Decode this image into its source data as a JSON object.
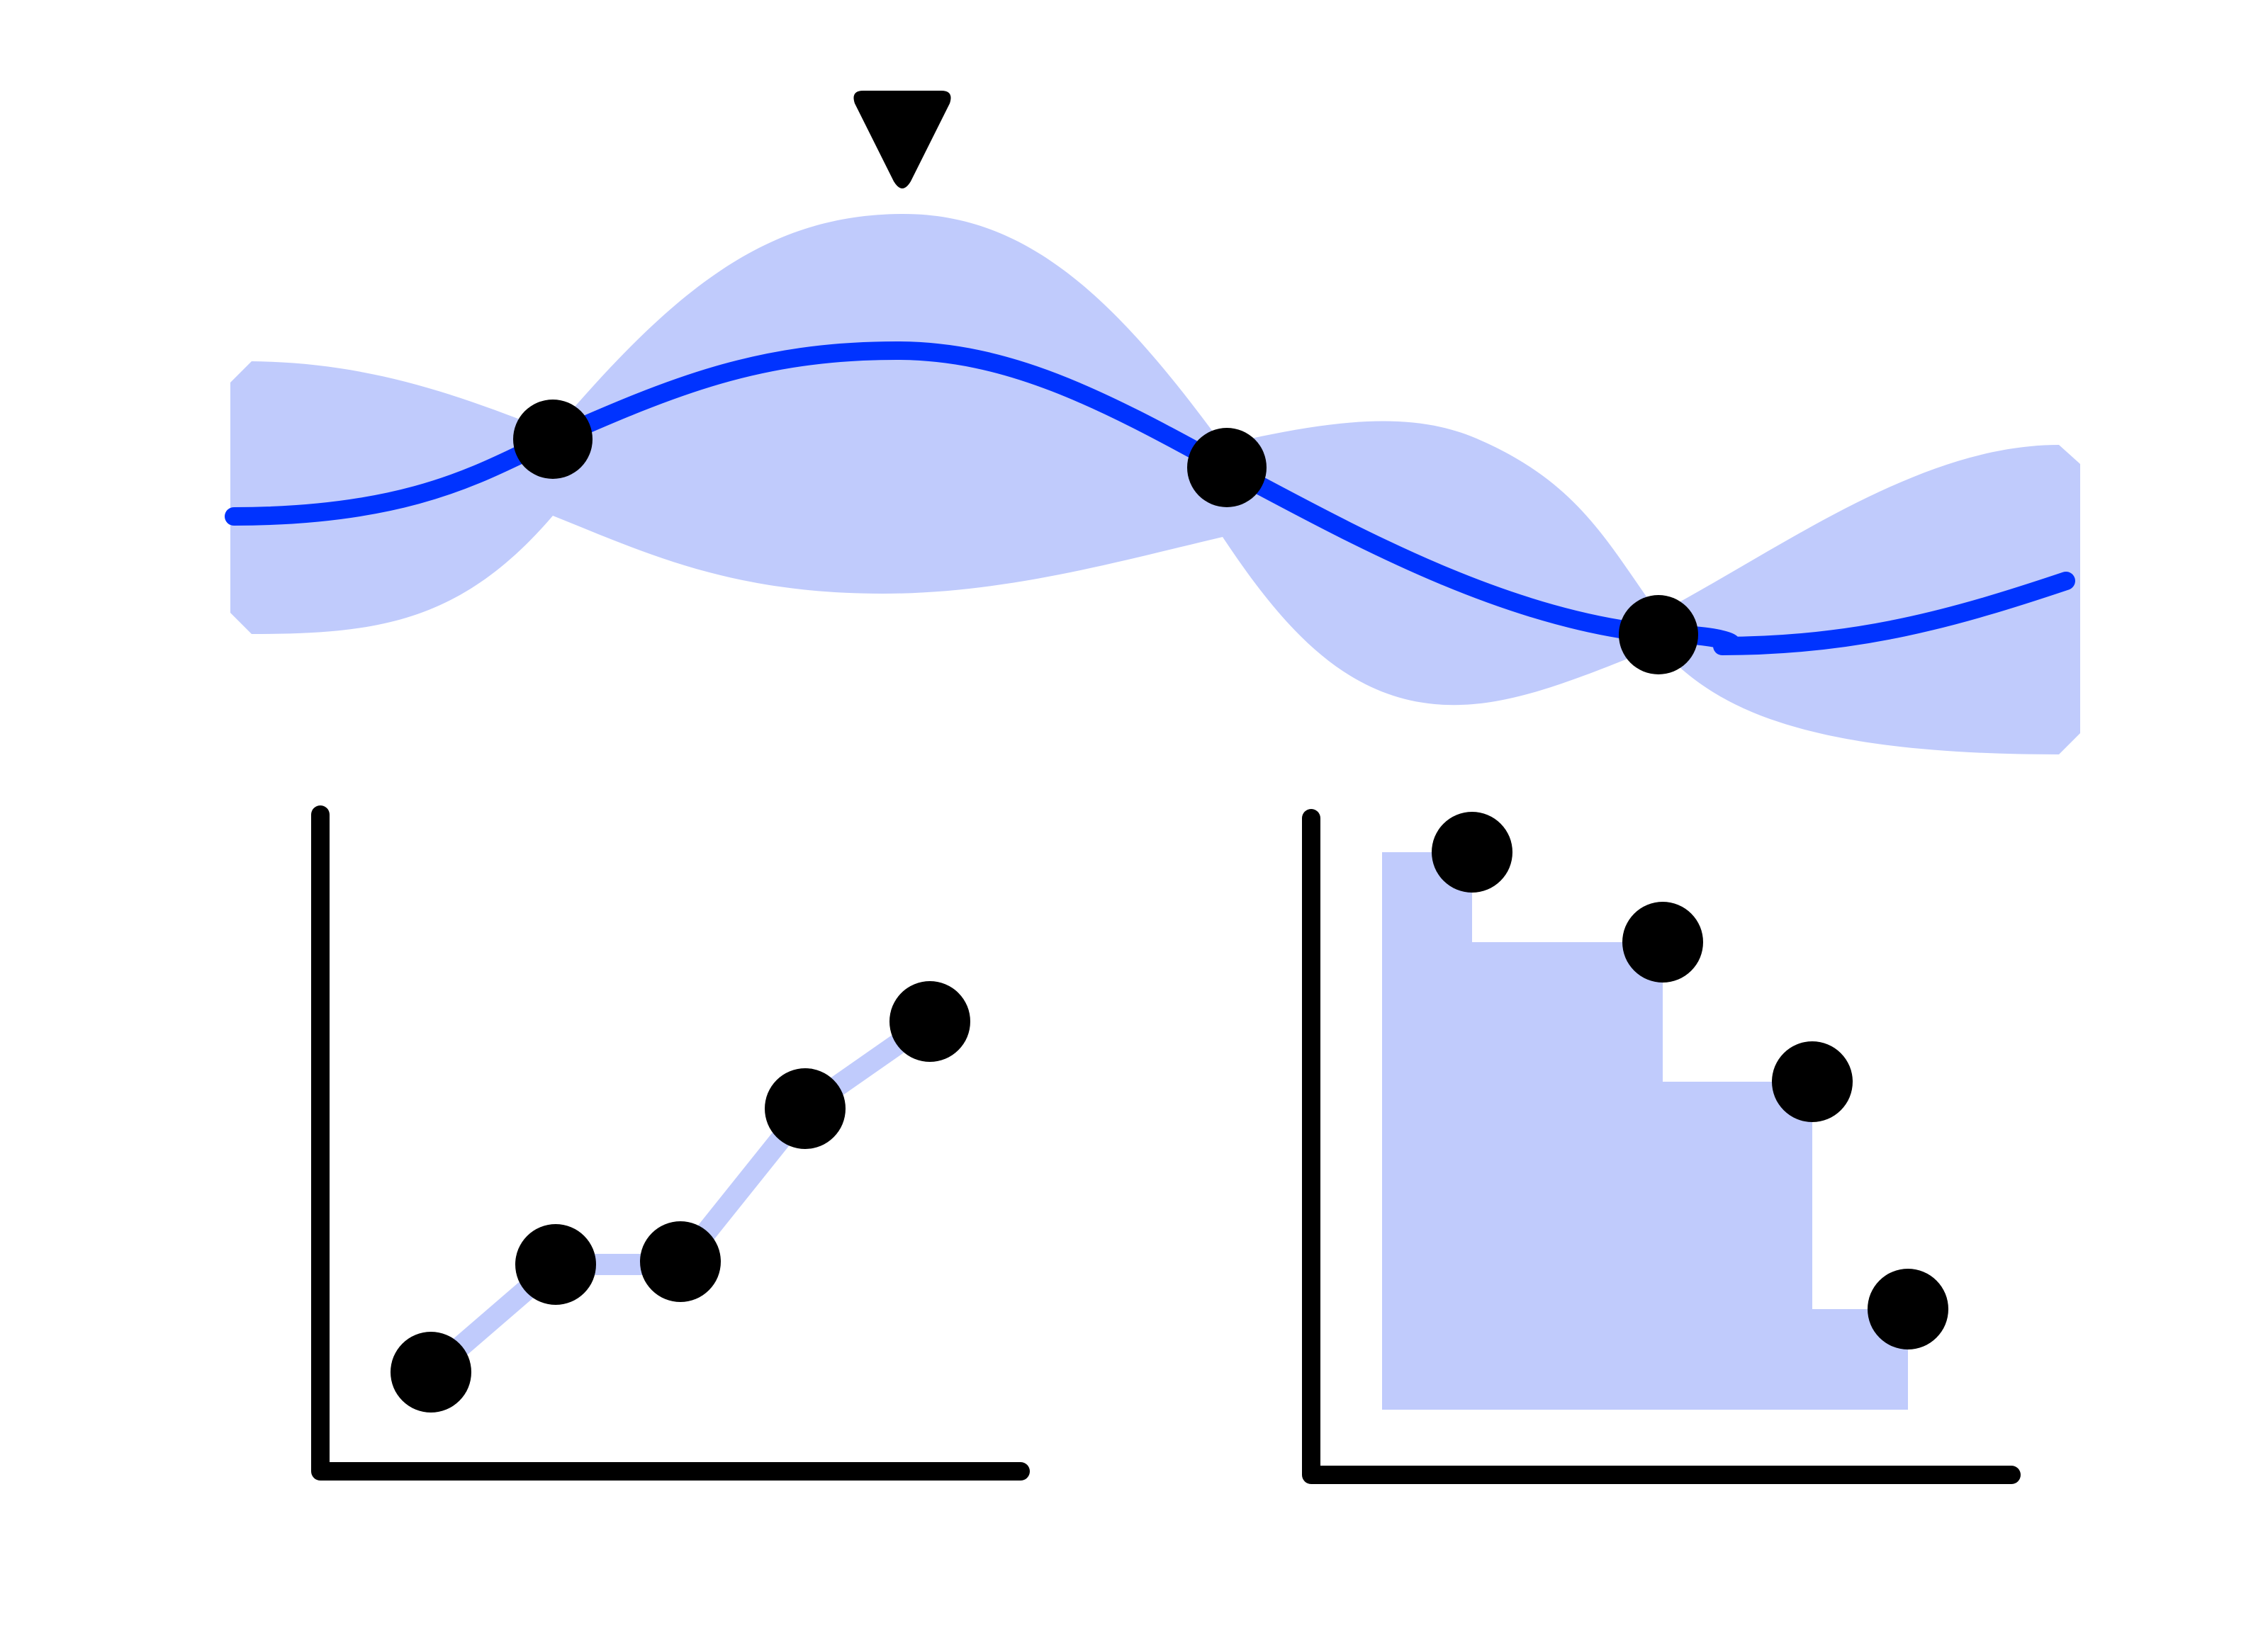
{
  "colors": {
    "background": "#ffffff",
    "primary_line": "#0033ff",
    "band_fill": "#c0cbfc",
    "points": "#000000",
    "axes": "#000000"
  },
  "icons": {
    "marker": "down-triangle-icon"
  },
  "chart_data": [
    {
      "type": "line",
      "role": "gaussian-process-surrogate",
      "series": [
        {
          "kind": "mean",
          "x": [
            0.0,
            0.17,
            0.36,
            0.53,
            0.77,
            0.81,
            1.0
          ],
          "y": [
            0.5,
            0.63,
            0.82,
            0.58,
            0.28,
            0.27,
            0.33
          ]
        },
        {
          "kind": "uncertainty-band",
          "x": [
            0.0,
            0.17,
            0.36,
            0.53,
            0.77,
            1.0
          ],
          "lower": [
            0.22,
            0.63,
            0.48,
            0.58,
            0.27,
            0.02
          ],
          "upper": [
            0.78,
            0.63,
            1.0,
            0.58,
            0.27,
            0.66
          ]
        },
        {
          "kind": "observations",
          "x": [
            0.17,
            0.53,
            0.77
          ],
          "y": [
            0.63,
            0.58,
            0.27
          ]
        }
      ],
      "annotation": {
        "kind": "next-sample-marker",
        "x": 0.36
      }
    },
    {
      "type": "line",
      "role": "objective-trace",
      "x": [
        1,
        2,
        3,
        4,
        5
      ],
      "y": [
        0.15,
        0.34,
        0.34,
        0.58,
        0.73
      ],
      "axes": {
        "x_ticks": false,
        "y_ticks": false,
        "grid": false
      }
    },
    {
      "type": "area",
      "role": "pareto-front",
      "step": true,
      "x": [
        0.12,
        0.41,
        0.64,
        0.79
      ],
      "y": [
        0.92,
        0.78,
        0.57,
        0.23
      ],
      "axes": {
        "x_ticks": false,
        "y_ticks": false,
        "grid": false
      }
    }
  ]
}
